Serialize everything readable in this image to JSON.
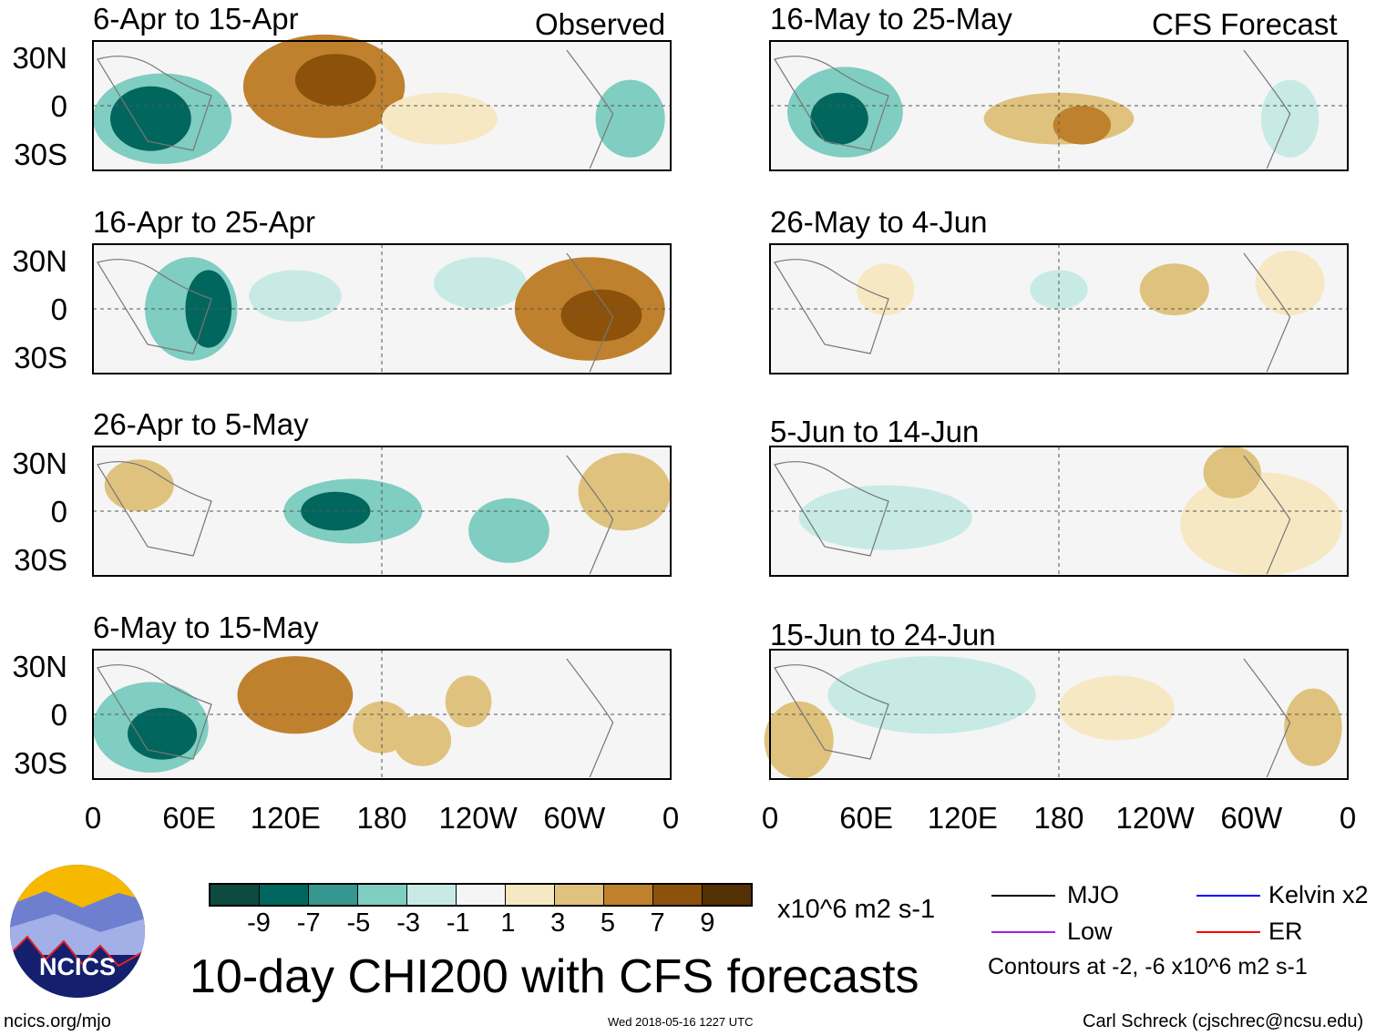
{
  "headers": {
    "left": "Observed",
    "right": "CFS Forecast"
  },
  "panels": {
    "left": [
      "6-Apr to 15-Apr",
      "16-Apr to 25-Apr",
      "26-Apr to 5-May",
      "6-May to 15-May"
    ],
    "right": [
      "16-May to 25-May",
      "26-May to 4-Jun",
      "5-Jun to 14-Jun",
      "15-Jun to 24-Jun"
    ]
  },
  "lat_labels": [
    "30N",
    "0",
    "30S"
  ],
  "lon_labels": [
    "0",
    "60E",
    "120E",
    "180",
    "120W",
    "60W",
    "0"
  ],
  "colorbar": {
    "colors": [
      "#0d4a3f",
      "#01665e",
      "#35978f",
      "#80cdc1",
      "#c7eae5",
      "#f5f5f5",
      "#f6e8c3",
      "#dfc27d",
      "#bf812d",
      "#8c510a",
      "#543005"
    ],
    "labels": [
      "-9",
      "-7",
      "-5",
      "-3",
      "-1",
      "1",
      "3",
      "5",
      "7",
      "9"
    ],
    "units": "x10^6 m2 s-1"
  },
  "title": "10-day CHI200 with CFS forecasts",
  "legend": {
    "items": [
      {
        "label": "MJO",
        "color": "#000000"
      },
      {
        "label": "Kelvin x2",
        "color": "#0000ff"
      },
      {
        "label": "Low",
        "color": "#a020f0"
      },
      {
        "label": "ER",
        "color": "#ff0000"
      }
    ],
    "note": "Contours at -2, -6 x10^6 m2 s-1"
  },
  "logo_text": "NCICS",
  "footer": {
    "url": "ncics.org/mjo",
    "timestamp": "Wed 2018-05-16 1227 UTC",
    "author": "Carl Schreck (cjschrec@ncsu.edu)"
  }
}
